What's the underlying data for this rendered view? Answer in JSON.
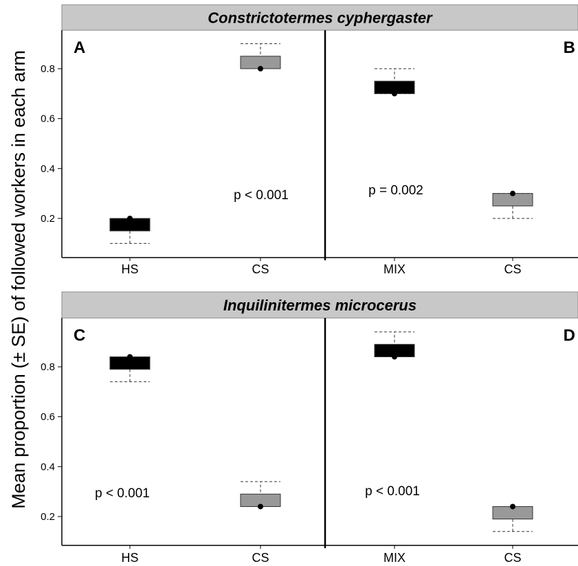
{
  "chart_data": {
    "type": "box",
    "ylabel": "Mean proportion (± SE) of followed workers in each arm",
    "ylim": [
      0.1,
      0.95
    ],
    "yticks": [
      0.2,
      0.4,
      0.6,
      0.8
    ],
    "ytick_labels": [
      "0.2",
      "0.4",
      "0.6",
      "0.8"
    ],
    "colors": {
      "HS": "#000000",
      "MIX": "#000000",
      "CS": "#999999"
    },
    "rows": [
      {
        "species": "Constrictotermes cyphergaster",
        "panels": [
          {
            "letter": "A",
            "letter_position": "top-left",
            "p_value": "p < 0.001",
            "categories": [
              "HS",
              "CS"
            ],
            "boxes": [
              {
                "category": "HS",
                "lower": 0.15,
                "upper": 0.2,
                "whisker_low": 0.1,
                "whisker_high": 0.2,
                "mean": 0.2
              },
              {
                "category": "CS",
                "lower": 0.8,
                "upper": 0.85,
                "whisker_low": 0.8,
                "whisker_high": 0.9,
                "mean": 0.8
              }
            ]
          },
          {
            "letter": "B",
            "letter_position": "top-right",
            "p_value": "p  = 0.002",
            "categories": [
              "MIX",
              "CS"
            ],
            "boxes": [
              {
                "category": "MIX",
                "lower": 0.7,
                "upper": 0.75,
                "whisker_low": 0.7,
                "whisker_high": 0.8,
                "mean": 0.7
              },
              {
                "category": "CS",
                "lower": 0.25,
                "upper": 0.3,
                "whisker_low": 0.2,
                "whisker_high": 0.3,
                "mean": 0.3
              }
            ]
          }
        ]
      },
      {
        "species": "Inquilinitermes microcerus",
        "panels": [
          {
            "letter": "C",
            "letter_position": "top-left",
            "p_value": "p < 0.001",
            "categories": [
              "HS",
              "CS"
            ],
            "boxes": [
              {
                "category": "HS",
                "lower": 0.79,
                "upper": 0.84,
                "whisker_low": 0.74,
                "whisker_high": 0.84,
                "mean": 0.84
              },
              {
                "category": "CS",
                "lower": 0.24,
                "upper": 0.29,
                "whisker_low": 0.24,
                "whisker_high": 0.34,
                "mean": 0.24
              }
            ]
          },
          {
            "letter": "D",
            "letter_position": "top-right",
            "p_value": "p < 0.001",
            "categories": [
              "MIX",
              "CS"
            ],
            "boxes": [
              {
                "category": "MIX",
                "lower": 0.84,
                "upper": 0.89,
                "whisker_low": 0.84,
                "whisker_high": 0.94,
                "mean": 0.84
              },
              {
                "category": "CS",
                "lower": 0.19,
                "upper": 0.24,
                "whisker_low": 0.14,
                "whisker_high": 0.24,
                "mean": 0.24
              }
            ]
          }
        ]
      }
    ]
  }
}
